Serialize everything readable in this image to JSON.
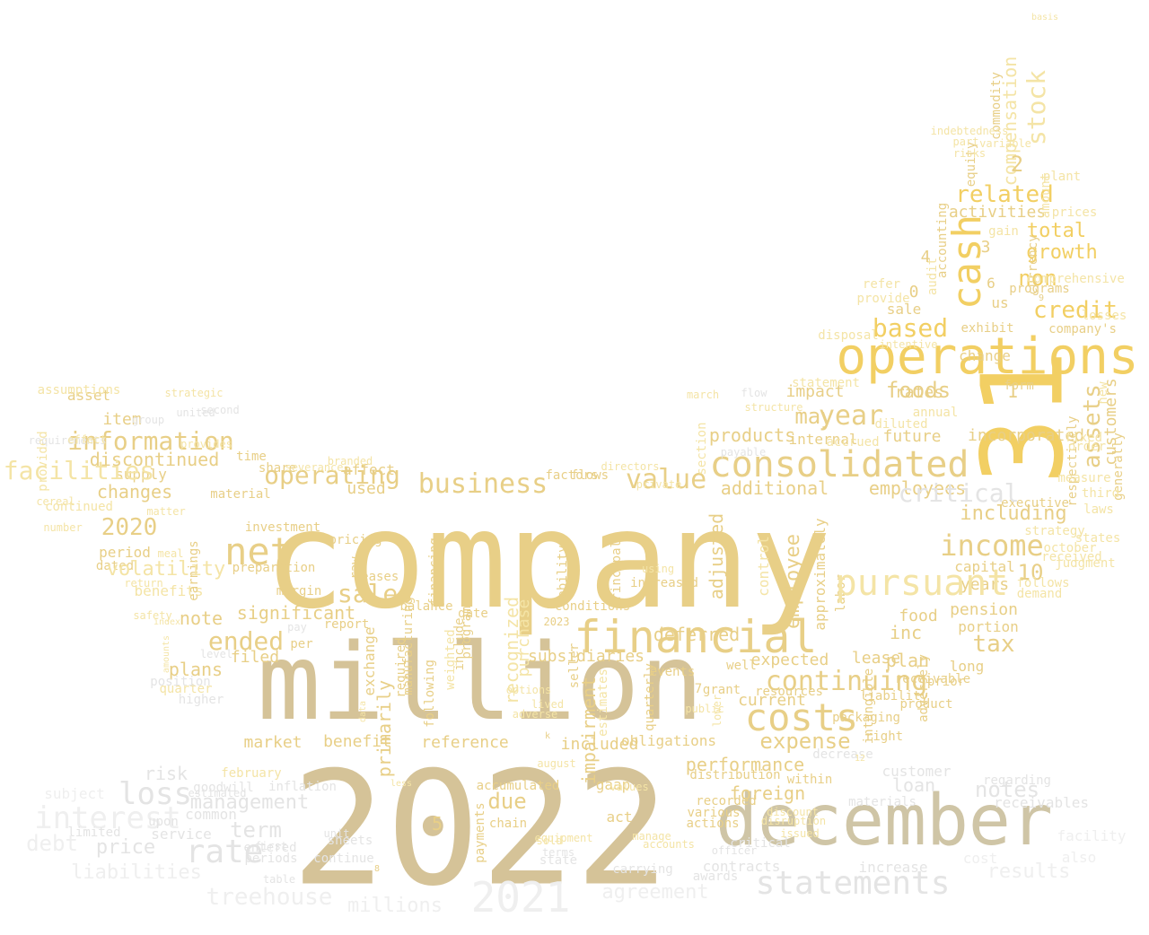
{
  "palette": {
    "gold": "#f2cf63",
    "sand": "#e8cf87",
    "tan": "#d5c398",
    "khaki": "#cfc5a6",
    "pale": "#f4e4a6",
    "grey": "#e4e4e4",
    "light": "#efefef"
  },
  "words": [
    {
      "text": "company",
      "color": "sand"
    },
    {
      "text": "2022",
      "color": "tan"
    },
    {
      "text": "million",
      "color": "tan"
    },
    {
      "text": "december",
      "color": "khaki"
    },
    {
      "text": "31",
      "color": "gold"
    },
    {
      "text": "operations",
      "color": "gold"
    },
    {
      "text": "financial",
      "color": "sand"
    },
    {
      "text": "consolidated",
      "color": "sand"
    },
    {
      "text": "costs",
      "color": "sand"
    },
    {
      "text": "statements",
      "color": "grey"
    },
    {
      "text": "net",
      "color": "sand"
    },
    {
      "text": "2021",
      "color": "light"
    },
    {
      "text": "cash",
      "color": "gold"
    },
    {
      "text": "income",
      "color": "sand"
    },
    {
      "text": "stock",
      "color": "pale"
    },
    {
      "text": "business",
      "color": "sand"
    },
    {
      "text": "operating",
      "color": "sand"
    },
    {
      "text": "information",
      "color": "sand"
    },
    {
      "text": "loss",
      "color": "grey"
    },
    {
      "text": "interest",
      "color": "light"
    },
    {
      "text": "rate",
      "color": "grey"
    },
    {
      "text": "value",
      "color": "sand"
    },
    {
      "text": "sales",
      "color": "sand"
    },
    {
      "text": "ended",
      "color": "sand"
    },
    {
      "text": "continuing",
      "color": "sand"
    },
    {
      "text": "credit",
      "color": "gold"
    },
    {
      "text": "based",
      "color": "gold"
    },
    {
      "text": "year",
      "color": "sand"
    },
    {
      "text": "related",
      "color": "gold"
    },
    {
      "text": "assets",
      "color": "sand"
    },
    {
      "text": "tax",
      "color": "sand"
    },
    {
      "text": "expense",
      "color": "sand"
    },
    {
      "text": "foods",
      "color": "sand"
    },
    {
      "text": "may",
      "color": "sand"
    },
    {
      "text": "compensation",
      "color": "pale"
    },
    {
      "text": "2020",
      "color": "sand"
    },
    {
      "text": "notes",
      "color": "grey"
    },
    {
      "text": "10",
      "color": "sand"
    },
    {
      "text": "including",
      "color": "sand"
    },
    {
      "text": "growth",
      "color": "gold"
    },
    {
      "text": "total",
      "color": "gold"
    },
    {
      "text": "non",
      "color": "gold"
    },
    {
      "text": "management",
      "color": "grey"
    },
    {
      "text": "treehouse",
      "color": "light"
    },
    {
      "text": "agreement",
      "color": "light"
    },
    {
      "text": "millions",
      "color": "light"
    },
    {
      "text": "price",
      "color": "grey"
    },
    {
      "text": "liabilities",
      "color": "light"
    },
    {
      "text": "debt",
      "color": "light"
    },
    {
      "text": "term",
      "color": "grey"
    },
    {
      "text": "results",
      "color": "light"
    },
    {
      "text": "employee",
      "color": "sand"
    },
    {
      "text": "performance",
      "color": "sand"
    },
    {
      "text": "foreign",
      "color": "sand"
    },
    {
      "text": "due",
      "color": "sand"
    },
    {
      "text": "primarily",
      "color": "sand"
    },
    {
      "text": "impairment",
      "color": "sand"
    },
    {
      "text": "activities",
      "color": "sand"
    },
    {
      "text": "pension",
      "color": "sand"
    },
    {
      "text": "years",
      "color": "sand"
    },
    {
      "text": "plans",
      "color": "sand"
    },
    {
      "text": "note",
      "color": "sand"
    },
    {
      "text": "significant",
      "color": "sand"
    },
    {
      "text": "deferred",
      "color": "sand"
    },
    {
      "text": "subsidiaries",
      "color": "sand"
    },
    {
      "text": "adjusted",
      "color": "sand"
    },
    {
      "text": "current",
      "color": "sand"
    },
    {
      "text": "changes",
      "color": "sand"
    },
    {
      "text": "discontinued",
      "color": "sand"
    },
    {
      "text": "item",
      "color": "sand"
    },
    {
      "text": "additional",
      "color": "sand"
    },
    {
      "text": "employees",
      "color": "sand"
    },
    {
      "text": "impact",
      "color": "sand"
    },
    {
      "text": "products",
      "color": "sand"
    },
    {
      "text": "future",
      "color": "sand"
    },
    {
      "text": "rates",
      "color": "sand"
    },
    {
      "text": "incorporated",
      "color": "sand"
    },
    {
      "text": "customers",
      "color": "sand"
    },
    {
      "text": "lease",
      "color": "sand"
    },
    {
      "text": "inc",
      "color": "sand"
    },
    {
      "text": "plan",
      "color": "sand"
    },
    {
      "text": "food",
      "color": "sand"
    },
    {
      "text": "capital",
      "color": "sand"
    },
    {
      "text": "portion",
      "color": "sand"
    },
    {
      "text": "long",
      "color": "sand"
    },
    {
      "text": "expected",
      "color": "sand"
    },
    {
      "text": "included",
      "color": "sand"
    },
    {
      "text": "obligations",
      "color": "sand"
    },
    {
      "text": "reference",
      "color": "sand"
    },
    {
      "text": "benefit",
      "color": "sand"
    },
    {
      "text": "market",
      "color": "sand"
    },
    {
      "text": "filed",
      "color": "sand"
    },
    {
      "text": "used",
      "color": "sand"
    },
    {
      "text": "recognized",
      "color": "pale"
    },
    {
      "text": "purchase",
      "color": "pale"
    },
    {
      "text": "gaap",
      "color": "sand"
    },
    {
      "text": "act",
      "color": "sand"
    },
    {
      "text": "payments",
      "color": "sand"
    },
    {
      "text": "accumulated",
      "color": "sand"
    },
    {
      "text": "chain",
      "color": "sand"
    },
    {
      "text": "distribution",
      "color": "sand"
    },
    {
      "text": "within",
      "color": "sand"
    },
    {
      "text": "materials",
      "color": "grey"
    },
    {
      "text": "loan",
      "color": "grey"
    },
    {
      "text": "receivables",
      "color": "grey"
    },
    {
      "text": "customer",
      "color": "grey"
    },
    {
      "text": "increase",
      "color": "grey"
    },
    {
      "text": "contracts",
      "color": "grey"
    },
    {
      "text": "risk",
      "color": "grey"
    },
    {
      "text": "service",
      "color": "grey"
    },
    {
      "text": "subject",
      "color": "light"
    },
    {
      "text": "common",
      "color": "grey"
    },
    {
      "text": "inflation",
      "color": "grey"
    },
    {
      "text": "supply",
      "color": "sand"
    },
    {
      "text": "period",
      "color": "sand"
    },
    {
      "text": "dated",
      "color": "sand"
    },
    {
      "text": "benefits",
      "color": "pale"
    },
    {
      "text": "earnings",
      "color": "sand"
    },
    {
      "text": "quarter",
      "color": "pale"
    },
    {
      "text": "asset",
      "color": "sand"
    },
    {
      "text": "continued",
      "color": "pale"
    },
    {
      "text": "share",
      "color": "sand"
    },
    {
      "text": "time",
      "color": "sand"
    },
    {
      "text": "material",
      "color": "sand"
    },
    {
      "text": "affect",
      "color": "sand"
    },
    {
      "text": "flows",
      "color": "sand"
    },
    {
      "text": "factors",
      "color": "sand"
    },
    {
      "text": "principal",
      "color": "sand"
    },
    {
      "text": "ability",
      "color": "sand"
    },
    {
      "text": "control",
      "color": "pale"
    },
    {
      "text": "approximately",
      "color": "sand"
    },
    {
      "text": "labor",
      "color": "sand"
    },
    {
      "text": "internal",
      "color": "sand"
    },
    {
      "text": "change",
      "color": "sand"
    },
    {
      "text": "form",
      "color": "sand"
    },
    {
      "text": "company's",
      "color": "sand"
    },
    {
      "text": "exhibit",
      "color": "sand"
    },
    {
      "text": "us",
      "color": "sand"
    },
    {
      "text": "sale",
      "color": "sand"
    },
    {
      "text": "programs",
      "color": "sand"
    },
    {
      "text": "currency",
      "color": "sand"
    },
    {
      "text": "commodity",
      "color": "sand"
    },
    {
      "text": "equity",
      "color": "sand"
    },
    {
      "text": "accounting",
      "color": "sand"
    },
    {
      "text": "amount",
      "color": "pale"
    },
    {
      "text": "manufacturing",
      "color": "sand"
    },
    {
      "text": "financing",
      "color": "sand"
    },
    {
      "text": "program",
      "color": "sand"
    },
    {
      "text": "include",
      "color": "sand"
    },
    {
      "text": "weighted",
      "color": "pale"
    },
    {
      "text": "following",
      "color": "sand"
    },
    {
      "text": "required",
      "color": "sand"
    },
    {
      "text": "exchange",
      "color": "sand"
    },
    {
      "text": "balance",
      "color": "sand"
    },
    {
      "text": "date",
      "color": "sand"
    },
    {
      "text": "report",
      "color": "sand"
    },
    {
      "text": "per",
      "color": "sand"
    },
    {
      "text": "raw",
      "color": "sand"
    },
    {
      "text": "leases",
      "color": "sand"
    },
    {
      "text": "pricing",
      "color": "sand"
    },
    {
      "text": "investment",
      "color": "sand"
    },
    {
      "text": "preparation",
      "color": "sand"
    },
    {
      "text": "seller",
      "color": "sand"
    },
    {
      "text": "conditions",
      "color": "sand"
    },
    {
      "text": "estimates",
      "color": "pale"
    },
    {
      "text": "increased",
      "color": "sand"
    },
    {
      "text": "quarterly",
      "color": "sand"
    },
    {
      "text": "events",
      "color": "sand"
    },
    {
      "text": "adversely",
      "color": "sand"
    },
    {
      "text": "product",
      "color": "sand"
    },
    {
      "text": "prior",
      "color": "sand"
    },
    {
      "text": "generally",
      "color": "sand"
    },
    {
      "text": "respectively",
      "color": "sand"
    },
    {
      "text": "strategy",
      "color": "pale"
    },
    {
      "text": "executive",
      "color": "sand"
    },
    {
      "text": "provided",
      "color": "pale"
    },
    {
      "text": "assumptions",
      "color": "pale"
    },
    {
      "text": "goodwill",
      "color": "grey"
    },
    {
      "text": "estimated",
      "color": "grey"
    },
    {
      "text": "february",
      "color": "pale"
    },
    {
      "text": "periods",
      "color": "grey"
    },
    {
      "text": "entered",
      "color": "grey"
    },
    {
      "text": "first",
      "color": "grey"
    },
    {
      "text": "upon",
      "color": "grey"
    },
    {
      "text": "limited",
      "color": "grey"
    },
    {
      "text": "various",
      "color": "sand"
    },
    {
      "text": "recorded",
      "color": "sand"
    },
    {
      "text": "actions",
      "color": "sand"
    },
    {
      "text": "awards",
      "color": "grey"
    },
    {
      "text": "carrying",
      "color": "grey"
    },
    {
      "text": "state",
      "color": "grey"
    },
    {
      "text": "terms",
      "color": "grey"
    },
    {
      "text": "continue",
      "color": "grey"
    },
    {
      "text": "critical",
      "color": "grey"
    },
    {
      "text": "decrease",
      "color": "grey"
    },
    {
      "text": "regarding",
      "color": "grey"
    },
    {
      "text": "also",
      "color": "light"
    },
    {
      "text": "facility",
      "color": "light"
    },
    {
      "text": "cost",
      "color": "light"
    },
    {
      "text": "sheets",
      "color": "grey"
    },
    {
      "text": "higher",
      "color": "grey"
    },
    {
      "text": "position",
      "color": "grey"
    },
    {
      "text": "margin",
      "color": "sand"
    },
    {
      "text": "well",
      "color": "sand"
    },
    {
      "text": "grant",
      "color": "sand"
    },
    {
      "text": "resources",
      "color": "sand"
    },
    {
      "text": "receivable",
      "color": "sand"
    },
    {
      "text": "liability",
      "color": "sand"
    },
    {
      "text": "right",
      "color": "sand"
    },
    {
      "text": "packaging",
      "color": "sand"
    },
    {
      "text": "intangible",
      "color": "sand"
    },
    {
      "text": "demand",
      "color": "pale"
    },
    {
      "text": "follows",
      "color": "pale"
    },
    {
      "text": "october",
      "color": "pale"
    },
    {
      "text": "received",
      "color": "pale"
    },
    {
      "text": "judgment",
      "color": "pale"
    },
    {
      "text": "states",
      "color": "pale"
    },
    {
      "text": "laws",
      "color": "pale"
    },
    {
      "text": "third",
      "color": "pale"
    },
    {
      "text": "fixed",
      "color": "pale"
    },
    {
      "text": "order",
      "color": "pale"
    },
    {
      "text": "measure",
      "color": "pale"
    },
    {
      "text": "statement",
      "color": "pale"
    },
    {
      "text": "accrued",
      "color": "pale"
    },
    {
      "text": "diluted",
      "color": "pale"
    },
    {
      "text": "annual",
      "color": "pale"
    },
    {
      "text": "new",
      "color": "pale"
    },
    {
      "text": "losses",
      "color": "pale"
    },
    {
      "text": "comprehensive",
      "color": "pale"
    },
    {
      "text": "prices",
      "color": "pale"
    },
    {
      "text": "gain",
      "color": "pale"
    },
    {
      "text": "refer",
      "color": "pale"
    },
    {
      "text": "provide",
      "color": "pale"
    },
    {
      "text": "disposal",
      "color": "pale"
    },
    {
      "text": "audit",
      "color": "pale"
    },
    {
      "text": "plant",
      "color": "pale"
    },
    {
      "text": "indebtedness",
      "color": "pale"
    },
    {
      "text": "risks",
      "color": "pale"
    },
    {
      "text": "part",
      "color": "pale"
    },
    {
      "text": "variable",
      "color": "pale"
    },
    {
      "text": "matter",
      "color": "pale"
    },
    {
      "text": "number",
      "color": "pale"
    },
    {
      "text": "cereal",
      "color": "pale"
    },
    {
      "text": "meal",
      "color": "pale"
    },
    {
      "text": "safety",
      "color": "pale"
    },
    {
      "text": "return",
      "color": "pale"
    },
    {
      "text": "index",
      "color": "pale"
    },
    {
      "text": "amounts",
      "color": "pale"
    },
    {
      "text": "level",
      "color": "grey"
    },
    {
      "text": "flow",
      "color": "grey"
    },
    {
      "text": "march",
      "color": "pale"
    },
    {
      "text": "private",
      "color": "pale"
    },
    {
      "text": "directors",
      "color": "pale"
    },
    {
      "text": "section",
      "color": "pale"
    },
    {
      "text": "using",
      "color": "pale"
    },
    {
      "text": "2023",
      "color": "sand"
    },
    {
      "text": "public",
      "color": "pale"
    },
    {
      "text": "lower",
      "color": "pale"
    },
    {
      "text": "options",
      "color": "pale"
    },
    {
      "text": "august",
      "color": "pale"
    },
    {
      "text": "values",
      "color": "pale"
    },
    {
      "text": "issued",
      "color": "pale"
    },
    {
      "text": "disruption",
      "color": "pale"
    },
    {
      "text": "discount",
      "color": "pale"
    },
    {
      "text": "strategic",
      "color": "pale"
    },
    {
      "text": "provides",
      "color": "pale"
    },
    {
      "text": "united",
      "color": "grey"
    },
    {
      "text": "unit",
      "color": "grey"
    },
    {
      "text": "table",
      "color": "grey"
    },
    {
      "text": "manage",
      "color": "pale"
    },
    {
      "text": "accounts",
      "color": "pale"
    },
    {
      "text": "basis",
      "color": "pale"
    },
    {
      "text": "requirements",
      "color": "grey"
    },
    {
      "text": "group",
      "color": "grey"
    },
    {
      "text": "second",
      "color": "grey"
    },
    {
      "text": "pay",
      "color": "grey"
    },
    {
      "text": "branded",
      "color": "pale"
    },
    {
      "text": "severance",
      "color": "pale"
    },
    {
      "text": "adverse",
      "color": "pale"
    },
    {
      "text": "lived",
      "color": "pale"
    },
    {
      "text": "effect",
      "color": "pale"
    },
    {
      "text": "less",
      "color": "pale"
    },
    {
      "text": "data",
      "color": "pale"
    },
    {
      "text": "sold",
      "color": "pale"
    },
    {
      "text": "equipment",
      "color": "pale"
    },
    {
      "text": "intentive",
      "color": "pale"
    },
    {
      "text": "structure",
      "color": "pale"
    },
    {
      "text": "payable",
      "color": "grey"
    },
    {
      "text": "officer",
      "color": "grey"
    },
    {
      "text": "volatility",
      "color": "pale"
    },
    {
      "text": "facilities",
      "color": "pale"
    },
    {
      "text": "pursuant",
      "color": "pale"
    },
    {
      "text": "critical",
      "color": "grey"
    },
    {
      "text": "2",
      "color": "sand"
    },
    {
      "text": "0",
      "color": "sand"
    },
    {
      "text": "1",
      "color": "sand"
    },
    {
      "text": "3",
      "color": "sand"
    },
    {
      "text": "4",
      "color": "sand"
    },
    {
      "text": "5",
      "color": "sand"
    },
    {
      "text": "6",
      "color": "sand"
    },
    {
      "text": "7",
      "color": "sand"
    },
    {
      "text": "8",
      "color": "sand"
    },
    {
      "text": "9",
      "color": "sand"
    },
    {
      "text": "k",
      "color": "sand"
    },
    {
      "text": "12",
      "color": "pale"
    },
    {
      "text": "14",
      "color": "grey"
    },
    {
      "text": "15",
      "color": "pale"
    },
    {
      "text": "21",
      "color": "pale"
    },
    {
      "text": "19",
      "color": "grey"
    }
  ]
}
